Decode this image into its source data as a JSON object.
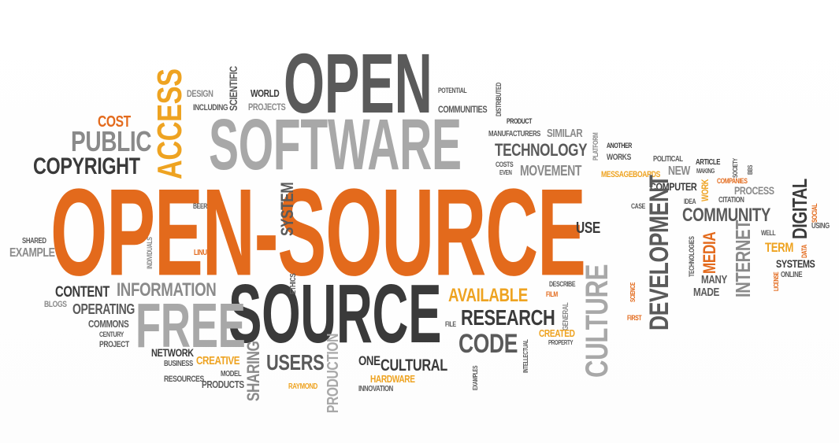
{
  "words": {
    "open_source": "OPEN-SOURCE",
    "open": "OPEN",
    "software": "SOFTWARE",
    "source": "SOURCE",
    "free": "FREE",
    "access": "ACCESS",
    "cost": "COST",
    "public": "PUBLIC",
    "copyright": "COPYRIGHT",
    "design": "DESIGN",
    "including": "INCLUDING",
    "scientific": "SCIENTIFIC",
    "world": "WORLD",
    "projects": "PROJECTS",
    "potential": "POTENTIAL",
    "communities": "COMMUNITIES",
    "distributed": "DISTRIBUTED",
    "product": "PRODUCT",
    "manufacturers": "MANUFACTURERS",
    "similar": "SIMILAR",
    "technology": "TECHNOLOGY",
    "platform": "PLATFORM",
    "another": "ANOTHER",
    "works": "WORKS",
    "costs": "COSTS",
    "even": "EVEN",
    "movement": "MOVEMENT",
    "messageboards": "MESSAGEBOARDS",
    "political": "POLITICAL",
    "new": "NEW",
    "article": "ARTICLE",
    "making": "MAKING",
    "society": "SOCIETY",
    "bbs": "BBS",
    "computer": "COMPUTER",
    "work": "WORK",
    "companies": "COMPANIES",
    "process": "PROCESS",
    "digital": "DIGITAL",
    "case": "CASE",
    "idea": "IDEA",
    "citation": "CITATION",
    "community": "COMMUNITY",
    "social": "SOCIAL",
    "using": "USING",
    "use": "USE",
    "development": "DEVELOPMENT",
    "technologies": "TECHNOLOGIES",
    "media": "MEDIA",
    "internet": "INTERNET",
    "well": "WELL",
    "term": "TERM",
    "data": "DATA",
    "systems": "SYSTEMS",
    "license": "LICENSE",
    "online": "ONLINE",
    "many": "MANY",
    "made": "MADE",
    "culture": "CULTURE",
    "science": "SCIENCE",
    "first": "FIRST",
    "shared": "SHARED",
    "example": "EXAMPLE",
    "beer": "BEER",
    "system": "SYSTEM",
    "individuals": "INDIVIDUALS",
    "linux": "LINUX",
    "ethics": "ETHICS",
    "content": "CONTENT",
    "information": "INFORMATION",
    "blogs": "BLOGS",
    "operating": "OPERATING",
    "commons": "COMMONS",
    "century": "CENTURY",
    "project": "PROJECT",
    "available": "AVAILABLE",
    "film": "FILM",
    "describe": "DESCRIBE",
    "general": "GENERAL",
    "research": "RESEARCH",
    "file": "FILE",
    "code": "CODE",
    "created": "CREATED",
    "property": "PROPERTY",
    "intellectual": "INTELLECTUAL",
    "network": "NETWORK",
    "business": "BUSINESS",
    "creative": "CREATIVE",
    "model": "MODEL",
    "resources": "RESOURCES",
    "products": "PRODUCTS",
    "sharing": "SHARING",
    "users": "USERS",
    "production": "PRODUCTION",
    "one": "ONE",
    "cultural": "CULTURAL",
    "hardware": "HARDWARE",
    "raymond": "RAYMOND",
    "innovation": "INNOVATION",
    "examples": "EXAMPLES"
  },
  "colors": {
    "orange": "#e36a1c",
    "amber": "#eea321",
    "dark_gray": "#3a3a3a",
    "mid_gray": "#5a5a5a",
    "light_gray": "#8a8a8a"
  }
}
